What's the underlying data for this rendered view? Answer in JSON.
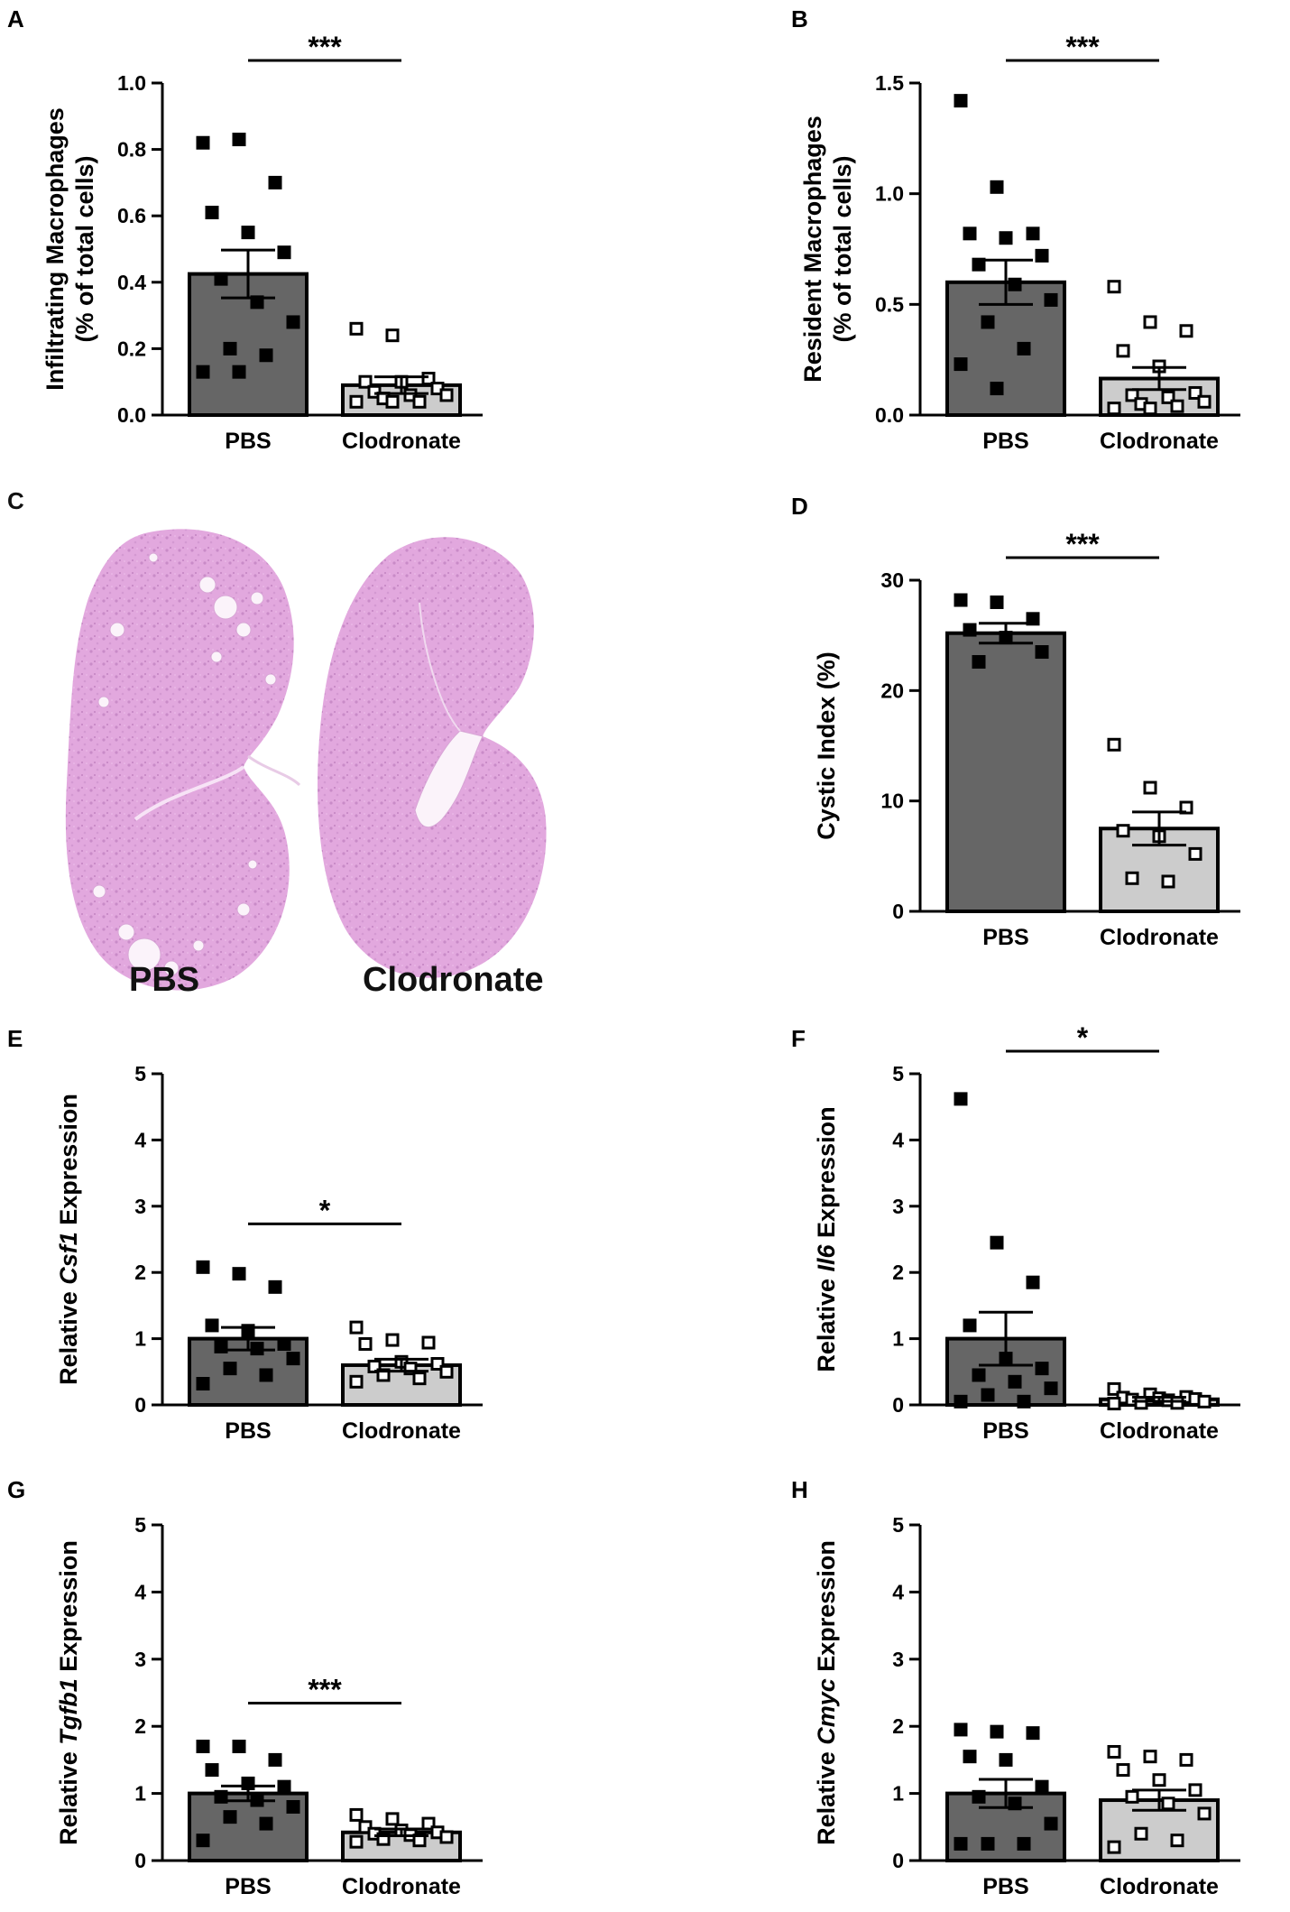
{
  "colors": {
    "pbs_bar": "#666666",
    "clod_bar": "#cccccc",
    "ink": "#000000",
    "kidney_fill": "#e2a8de",
    "kidney_dark": "#c783c6"
  },
  "kidney_panel": {
    "letter": "C",
    "labels": [
      "PBS",
      "Clodronate"
    ]
  },
  "chart_data": [
    {
      "letter": "A",
      "type": "bar",
      "categories": [
        "PBS",
        "Clodronate"
      ],
      "ylabel": "Infiltrating Macrophages",
      "ylabel2": "(% of total cells)",
      "ylabel_italic": "",
      "ylim": [
        0,
        1.0
      ],
      "yticks": [
        0.0,
        0.2,
        0.4,
        0.6,
        0.8,
        1.0
      ],
      "ytick_labels": [
        "0.0",
        "0.2",
        "0.4",
        "0.6",
        "0.8",
        "1.0"
      ],
      "means": [
        0.425,
        0.09
      ],
      "sems": [
        0.072,
        0.025
      ],
      "significance": "***",
      "points": [
        [
          0.82,
          0.83,
          0.7,
          0.61,
          0.55,
          0.49,
          0.41,
          0.34,
          0.28,
          0.2,
          0.18,
          0.13,
          0.13
        ],
        [
          0.26,
          0.24,
          0.11,
          0.1,
          0.1,
          0.08,
          0.07,
          0.06,
          0.06,
          0.05,
          0.04,
          0.04,
          0.04
        ]
      ]
    },
    {
      "letter": "B",
      "type": "bar",
      "categories": [
        "PBS",
        "Clodronate"
      ],
      "ylabel": "Resident Macrophages",
      "ylabel2": "(% of total cells)",
      "ylabel_italic": "",
      "ylim": [
        0,
        1.5
      ],
      "yticks": [
        0.0,
        0.5,
        1.0,
        1.5
      ],
      "ytick_labels": [
        "0.0",
        "0.5",
        "1.0",
        "1.5"
      ],
      "means": [
        0.6,
        0.165
      ],
      "sems": [
        0.1,
        0.05
      ],
      "significance": "***",
      "points": [
        [
          1.42,
          1.03,
          0.82,
          0.82,
          0.8,
          0.72,
          0.68,
          0.59,
          0.52,
          0.42,
          0.3,
          0.23,
          0.12
        ],
        [
          0.58,
          0.42,
          0.38,
          0.29,
          0.22,
          0.1,
          0.09,
          0.08,
          0.06,
          0.05,
          0.04,
          0.03,
          0.03
        ]
      ]
    },
    {
      "letter": "D",
      "type": "bar",
      "categories": [
        "PBS",
        "Clodronate"
      ],
      "ylabel": "Cystic Index (%)",
      "ylabel2": "",
      "ylabel_italic": "",
      "ylim": [
        0,
        30
      ],
      "yticks": [
        0,
        10,
        20,
        30
      ],
      "ytick_labels": [
        "0",
        "10",
        "20",
        "30"
      ],
      "means": [
        25.2,
        7.5
      ],
      "sems": [
        0.9,
        1.5
      ],
      "significance": "***",
      "points": [
        [
          28.2,
          28.0,
          26.5,
          25.5,
          24.8,
          23.5,
          22.6
        ],
        [
          15.1,
          11.2,
          9.4,
          7.3,
          6.8,
          5.2,
          3.0,
          2.7
        ]
      ]
    },
    {
      "letter": "E",
      "type": "bar",
      "categories": [
        "PBS",
        "Clodronate"
      ],
      "ylabel": "Relative ",
      "ylabel2": " Expression",
      "ylabel_italic": "Csf1",
      "ylim": [
        0,
        5
      ],
      "yticks": [
        0,
        1,
        2,
        3,
        4,
        5
      ],
      "ytick_labels": [
        "0",
        "1",
        "2",
        "3",
        "4",
        "5"
      ],
      "means": [
        1.0,
        0.6
      ],
      "sems": [
        0.17,
        0.09
      ],
      "significance": "*",
      "points": [
        [
          2.08,
          1.98,
          1.78,
          1.2,
          1.12,
          0.92,
          0.88,
          0.85,
          0.7,
          0.55,
          0.45,
          0.32
        ],
        [
          1.17,
          0.98,
          0.94,
          0.92,
          0.65,
          0.62,
          0.58,
          0.55,
          0.5,
          0.45,
          0.4,
          0.35
        ]
      ]
    },
    {
      "letter": "F",
      "type": "bar",
      "categories": [
        "PBS",
        "Clodronate"
      ],
      "ylabel": "Relative ",
      "ylabel2": " Expression",
      "ylabel_italic": "Il6",
      "ylim": [
        0,
        5
      ],
      "yticks": [
        0,
        1,
        2,
        3,
        4,
        5
      ],
      "ytick_labels": [
        "0",
        "1",
        "2",
        "3",
        "4",
        "5"
      ],
      "means": [
        1.0,
        0.085
      ],
      "sems": [
        0.4,
        0.03
      ],
      "significance": "*",
      "points": [
        [
          4.62,
          2.45,
          1.85,
          1.2,
          0.7,
          0.55,
          0.45,
          0.35,
          0.25,
          0.15,
          0.05,
          0.05
        ],
        [
          0.24,
          0.16,
          0.12,
          0.11,
          0.1,
          0.09,
          0.08,
          0.07,
          0.05,
          0.03,
          0.03,
          0.02
        ]
      ]
    },
    {
      "letter": "G",
      "type": "bar",
      "categories": [
        "PBS",
        "Clodronate"
      ],
      "ylabel": "Relative ",
      "ylabel2": " Expression",
      "ylabel_italic": "Tgfb1",
      "ylim": [
        0,
        5
      ],
      "yticks": [
        0,
        1,
        2,
        3,
        4,
        5
      ],
      "ytick_labels": [
        "0",
        "1",
        "2",
        "3",
        "4",
        "5"
      ],
      "means": [
        1.0,
        0.42
      ],
      "sems": [
        0.11,
        0.05
      ],
      "significance": "***",
      "points": [
        [
          1.7,
          1.7,
          1.5,
          1.35,
          1.15,
          1.1,
          0.95,
          0.9,
          0.8,
          0.65,
          0.55,
          0.3
        ],
        [
          0.68,
          0.62,
          0.55,
          0.5,
          0.45,
          0.42,
          0.4,
          0.38,
          0.35,
          0.32,
          0.3,
          0.28
        ]
      ]
    },
    {
      "letter": "H",
      "type": "bar",
      "categories": [
        "PBS",
        "Clodronate"
      ],
      "ylabel": "Relative ",
      "ylabel2": " Expression",
      "ylabel_italic": "Cmyc",
      "ylim": [
        0,
        5
      ],
      "yticks": [
        0,
        1,
        2,
        3,
        4,
        5
      ],
      "ytick_labels": [
        "0",
        "1",
        "2",
        "3",
        "4",
        "5"
      ],
      "means": [
        1.0,
        0.9
      ],
      "sems": [
        0.21,
        0.15
      ],
      "significance": "",
      "points": [
        [
          1.95,
          1.92,
          1.9,
          1.55,
          1.5,
          1.1,
          0.95,
          0.85,
          0.55,
          0.25,
          0.25,
          0.25
        ],
        [
          1.62,
          1.55,
          1.5,
          1.35,
          1.2,
          1.05,
          0.95,
          0.85,
          0.7,
          0.4,
          0.3,
          0.2
        ]
      ]
    }
  ]
}
